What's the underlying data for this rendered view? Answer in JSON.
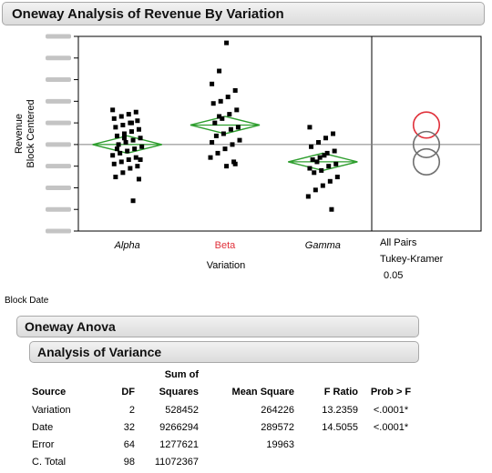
{
  "report": {
    "title": "Oneway Analysis of Revenue By Variation",
    "block_label": "Block Date",
    "oneway_anova_title": "Oneway Anova",
    "analysis_of_variance_title": "Analysis of Variance"
  },
  "chart_data": {
    "type": "scatter",
    "ylabel_line1": "Revenue",
    "ylabel_line2": "Block Centered",
    "xlabel": "Variation",
    "categories": [
      "Alpha",
      "Beta",
      "Gamma"
    ],
    "highlight_category": "Beta",
    "grand_mean": 0,
    "y_range": [
      -4,
      5
    ],
    "means_diamonds": [
      {
        "group": "Alpha",
        "mean": 0,
        "lower": -0.4,
        "upper": 0.4
      },
      {
        "group": "Beta",
        "mean": 0.9,
        "lower": 0.5,
        "upper": 1.3
      },
      {
        "group": "Gamma",
        "mean": -0.8,
        "lower": -1.2,
        "upper": -0.4
      }
    ],
    "points": {
      "Alpha": [
        1.6,
        1.5,
        1.4,
        1.3,
        1.2,
        1.1,
        1.0,
        0.9,
        0.8,
        0.7,
        0.6,
        0.5,
        0.4,
        0.3,
        0.2,
        0.1,
        0.0,
        -0.1,
        -0.2,
        -0.3,
        -0.4,
        -0.5,
        -0.6,
        -0.7,
        -0.8,
        -0.9,
        -1.0,
        -1.1,
        -1.3,
        -1.5,
        -1.6,
        1.0,
        0.3,
        -0.2,
        -0.7,
        -2.6
      ],
      "Beta": [
        4.7,
        3.4,
        2.8,
        2.5,
        2.2,
        2.0,
        1.9,
        1.6,
        1.4,
        1.2,
        1.0,
        0.8,
        0.7,
        0.5,
        0.4,
        0.2,
        0.0,
        -0.2,
        -0.4,
        -0.6,
        -0.8,
        -1.0,
        1.3,
        0.1,
        -0.9
      ],
      "Gamma": [
        0.8,
        0.5,
        0.3,
        0.1,
        -0.1,
        -0.3,
        -0.4,
        -0.6,
        -0.7,
        -0.9,
        -1.0,
        -1.2,
        -1.3,
        -1.5,
        -1.7,
        -1.9,
        -2.1,
        -2.4,
        -3.0,
        -0.5,
        -0.8,
        -1.1
      ]
    },
    "comparison": {
      "label_line1": "All Pairs",
      "label_line2": "Tukey-Kramer",
      "label_line3": "0.05",
      "circles": [
        {
          "group": "Beta",
          "center": 0.9,
          "radius": 1.0,
          "color": "#e0303a"
        },
        {
          "group": "Alpha",
          "center": 0.0,
          "radius": 1.0,
          "color": "#707070"
        },
        {
          "group": "Gamma",
          "center": -0.8,
          "radius": 1.0,
          "color": "#707070"
        }
      ]
    },
    "colors": {
      "points": "#000000",
      "diamond": "#2e9e2e",
      "mean_line": "#808080",
      "highlight": "#e0303a"
    }
  },
  "anova_table": {
    "header_top": "Sum of",
    "headers": [
      "Source",
      "DF",
      "Squares",
      "Mean Square",
      "F Ratio",
      "Prob > F"
    ],
    "rows": [
      {
        "source": "Variation",
        "df": "2",
        "ss": "528452",
        "ms": "264226",
        "f": "13.2359",
        "p": "<.0001*"
      },
      {
        "source": "Date",
        "df": "32",
        "ss": "9266294",
        "ms": "289572",
        "f": "14.5055",
        "p": "<.0001*"
      },
      {
        "source": "Error",
        "df": "64",
        "ss": "1277621",
        "ms": "19963",
        "f": "",
        "p": ""
      },
      {
        "source": "C. Total",
        "df": "98",
        "ss": "11072367",
        "ms": "",
        "f": "",
        "p": ""
      }
    ]
  }
}
